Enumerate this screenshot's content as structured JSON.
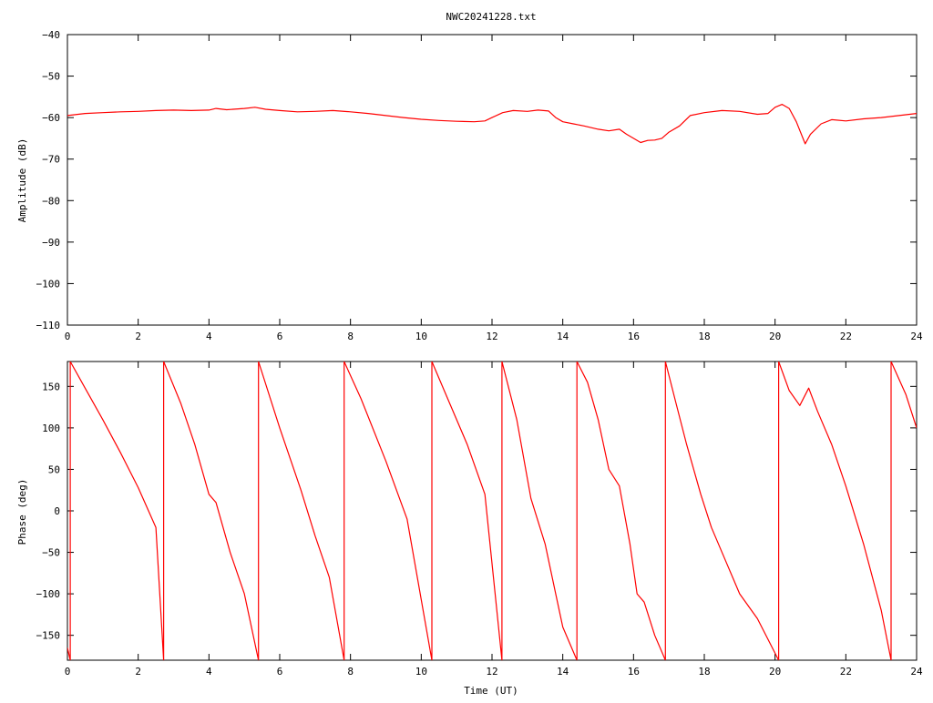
{
  "title": "NWC20241228.txt",
  "colors": {
    "series": "#ff0000",
    "frame": "#000000",
    "background": "#ffffff"
  },
  "chart_data": [
    {
      "type": "line",
      "title": "NWC20241228.txt",
      "xlabel": "",
      "ylabel": "Amplitude (dB)",
      "xlim": [
        0,
        24
      ],
      "ylim": [
        -110,
        -40
      ],
      "xticks": [
        0,
        2,
        4,
        6,
        8,
        10,
        12,
        14,
        16,
        18,
        20,
        22,
        24
      ],
      "yticks": [
        -110,
        -100,
        -90,
        -80,
        -70,
        -60,
        -50,
        -40
      ],
      "grid": false,
      "legend": "none",
      "series": [
        {
          "x": [
            0,
            0.5,
            1,
            1.5,
            2,
            2.5,
            3,
            3.5,
            4,
            4.2,
            4.5,
            5,
            5.3,
            5.6,
            6,
            6.5,
            7,
            7.5,
            8,
            8.5,
            9,
            9.5,
            10,
            10.5,
            11,
            11.5,
            11.8,
            12,
            12.3,
            12.6,
            13,
            13.3,
            13.6,
            13.8,
            14,
            14.3,
            14.6,
            15,
            15.3,
            15.6,
            15.8,
            16,
            16.2,
            16.4,
            16.6,
            16.8,
            17,
            17.3,
            17.6,
            18,
            18.5,
            19,
            19.5,
            19.8,
            20,
            20.2,
            20.4,
            20.6,
            20.85,
            21,
            21.3,
            21.6,
            22,
            22.5,
            23,
            23.5,
            24
          ],
          "y": [
            -59.5,
            -59,
            -58.8,
            -58.6,
            -58.5,
            -58.3,
            -58.2,
            -58.3,
            -58.2,
            -57.8,
            -58.1,
            -57.8,
            -57.5,
            -58.0,
            -58.3,
            -58.6,
            -58.5,
            -58.3,
            -58.6,
            -59,
            -59.5,
            -60,
            -60.4,
            -60.7,
            -60.9,
            -61.0,
            -60.8,
            -60.0,
            -58.8,
            -58.3,
            -58.5,
            -58.2,
            -58.4,
            -60,
            -61,
            -61.5,
            -62,
            -62.8,
            -63.2,
            -62.8,
            -64,
            -65,
            -66,
            -65.5,
            -65.4,
            -65.0,
            -63.5,
            -62,
            -59.5,
            -58.8,
            -58.3,
            -58.5,
            -59.2,
            -59.0,
            -57.5,
            -56.8,
            -57.8,
            -61,
            -66.3,
            -64,
            -61.5,
            -60.5,
            -60.8,
            -60.3,
            -60.0,
            -59.5,
            -59.0
          ]
        }
      ]
    },
    {
      "type": "line",
      "title": "",
      "xlabel": "Time (UT)",
      "ylabel": "Phase (deg)",
      "xlim": [
        0,
        24
      ],
      "ylim": [
        -180,
        180
      ],
      "xticks": [
        0,
        2,
        4,
        6,
        8,
        10,
        12,
        14,
        16,
        18,
        20,
        22,
        24
      ],
      "yticks": [
        -150,
        -100,
        -50,
        0,
        50,
        100,
        150
      ],
      "grid": false,
      "legend": "none",
      "series": [
        {
          "x": [
            0,
            0.08,
            0.08,
            0.5,
            1,
            1.5,
            2,
            2.5,
            2.72,
            2.72,
            3.2,
            3.6,
            4.0,
            4.2,
            4.6,
            5.0,
            5.4,
            5.4,
            6.0,
            6.6,
            7.0,
            7.4,
            7.82,
            7.82,
            8.3,
            9.0,
            9.6,
            10.3,
            10.3,
            10.8,
            11.3,
            11.8,
            12.28,
            12.28,
            12.7,
            13.1,
            13.5,
            13.8,
            14.0,
            14.4,
            14.4,
            14.7,
            15.0,
            15.3,
            15.6,
            15.9,
            16.1,
            16.3,
            16.6,
            16.9,
            16.9,
            17.2,
            17.5,
            17.9,
            18.2,
            18.6,
            19.0,
            19.5,
            20.1,
            20.1,
            20.4,
            20.7,
            20.95,
            21.2,
            21.6,
            22.0,
            22.5,
            23.0,
            23.28,
            23.28,
            23.7,
            24.0
          ],
          "y": [
            -165,
            -180,
            180,
            148,
            110,
            70,
            28,
            -20,
            -180,
            180,
            130,
            80,
            20,
            10,
            -50,
            -100,
            -180,
            180,
            100,
            25,
            -30,
            -80,
            -180,
            180,
            135,
            60,
            -10,
            -180,
            180,
            130,
            80,
            20,
            -180,
            180,
            110,
            15,
            -40,
            -100,
            -140,
            -180,
            180,
            155,
            110,
            50,
            30,
            -40,
            -100,
            -110,
            -150,
            -180,
            180,
            130,
            80,
            20,
            -20,
            -60,
            -100,
            -130,
            -180,
            180,
            145,
            127,
            148,
            120,
            80,
            30,
            -40,
            -120,
            -180,
            180,
            140,
            100
          ]
        }
      ]
    }
  ]
}
